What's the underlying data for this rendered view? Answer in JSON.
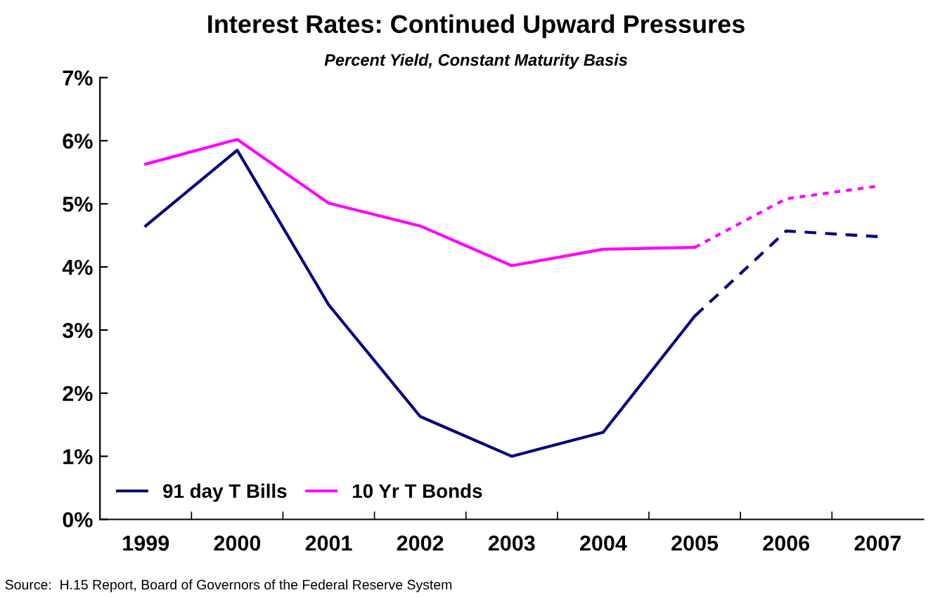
{
  "chart_data": {
    "type": "line",
    "title": "Interest Rates: Continued Upward Pressures",
    "subtitle": "Percent Yield, Constant Maturity Basis",
    "categories": [
      "1999",
      "2000",
      "2001",
      "2002",
      "2003",
      "2004",
      "2005",
      "2006",
      "2007"
    ],
    "series": [
      {
        "name": "91 day T Bills",
        "color": "#000080",
        "values": [
          4.65,
          5.85,
          3.4,
          1.63,
          1.0,
          1.38,
          3.22,
          null,
          null
        ],
        "line_style": "solid"
      },
      {
        "name": "10 Yr T Bonds",
        "color": "#ff00ff",
        "values": [
          5.63,
          6.02,
          5.01,
          4.65,
          4.02,
          4.28,
          4.31,
          null,
          null
        ],
        "line_style": "solid"
      },
      {
        "color": "#000080",
        "values": [
          null,
          null,
          null,
          null,
          null,
          null,
          3.22,
          4.57,
          4.48
        ],
        "line_style": "dashed"
      },
      {
        "color": "#ff00ff",
        "values": [
          null,
          null,
          null,
          null,
          null,
          null,
          4.31,
          5.08,
          5.28
        ],
        "line_style": "dotted"
      }
    ],
    "ylim": [
      0,
      7
    ],
    "yticks": [
      {
        "value": 0,
        "label": "0%"
      },
      {
        "value": 1,
        "label": "1%"
      },
      {
        "value": 2,
        "label": "2%"
      },
      {
        "value": 3,
        "label": "3%"
      },
      {
        "value": 4,
        "label": "4%"
      },
      {
        "value": 5,
        "label": "5%"
      },
      {
        "value": 6,
        "label": "6%"
      },
      {
        "value": 7,
        "label": "7%"
      }
    ],
    "grid": false,
    "legend": "bottom left",
    "marker": "none",
    "annotations": [
      "Source:  H.15 Report, Board of Governors of the Federal Reserve System"
    ]
  }
}
